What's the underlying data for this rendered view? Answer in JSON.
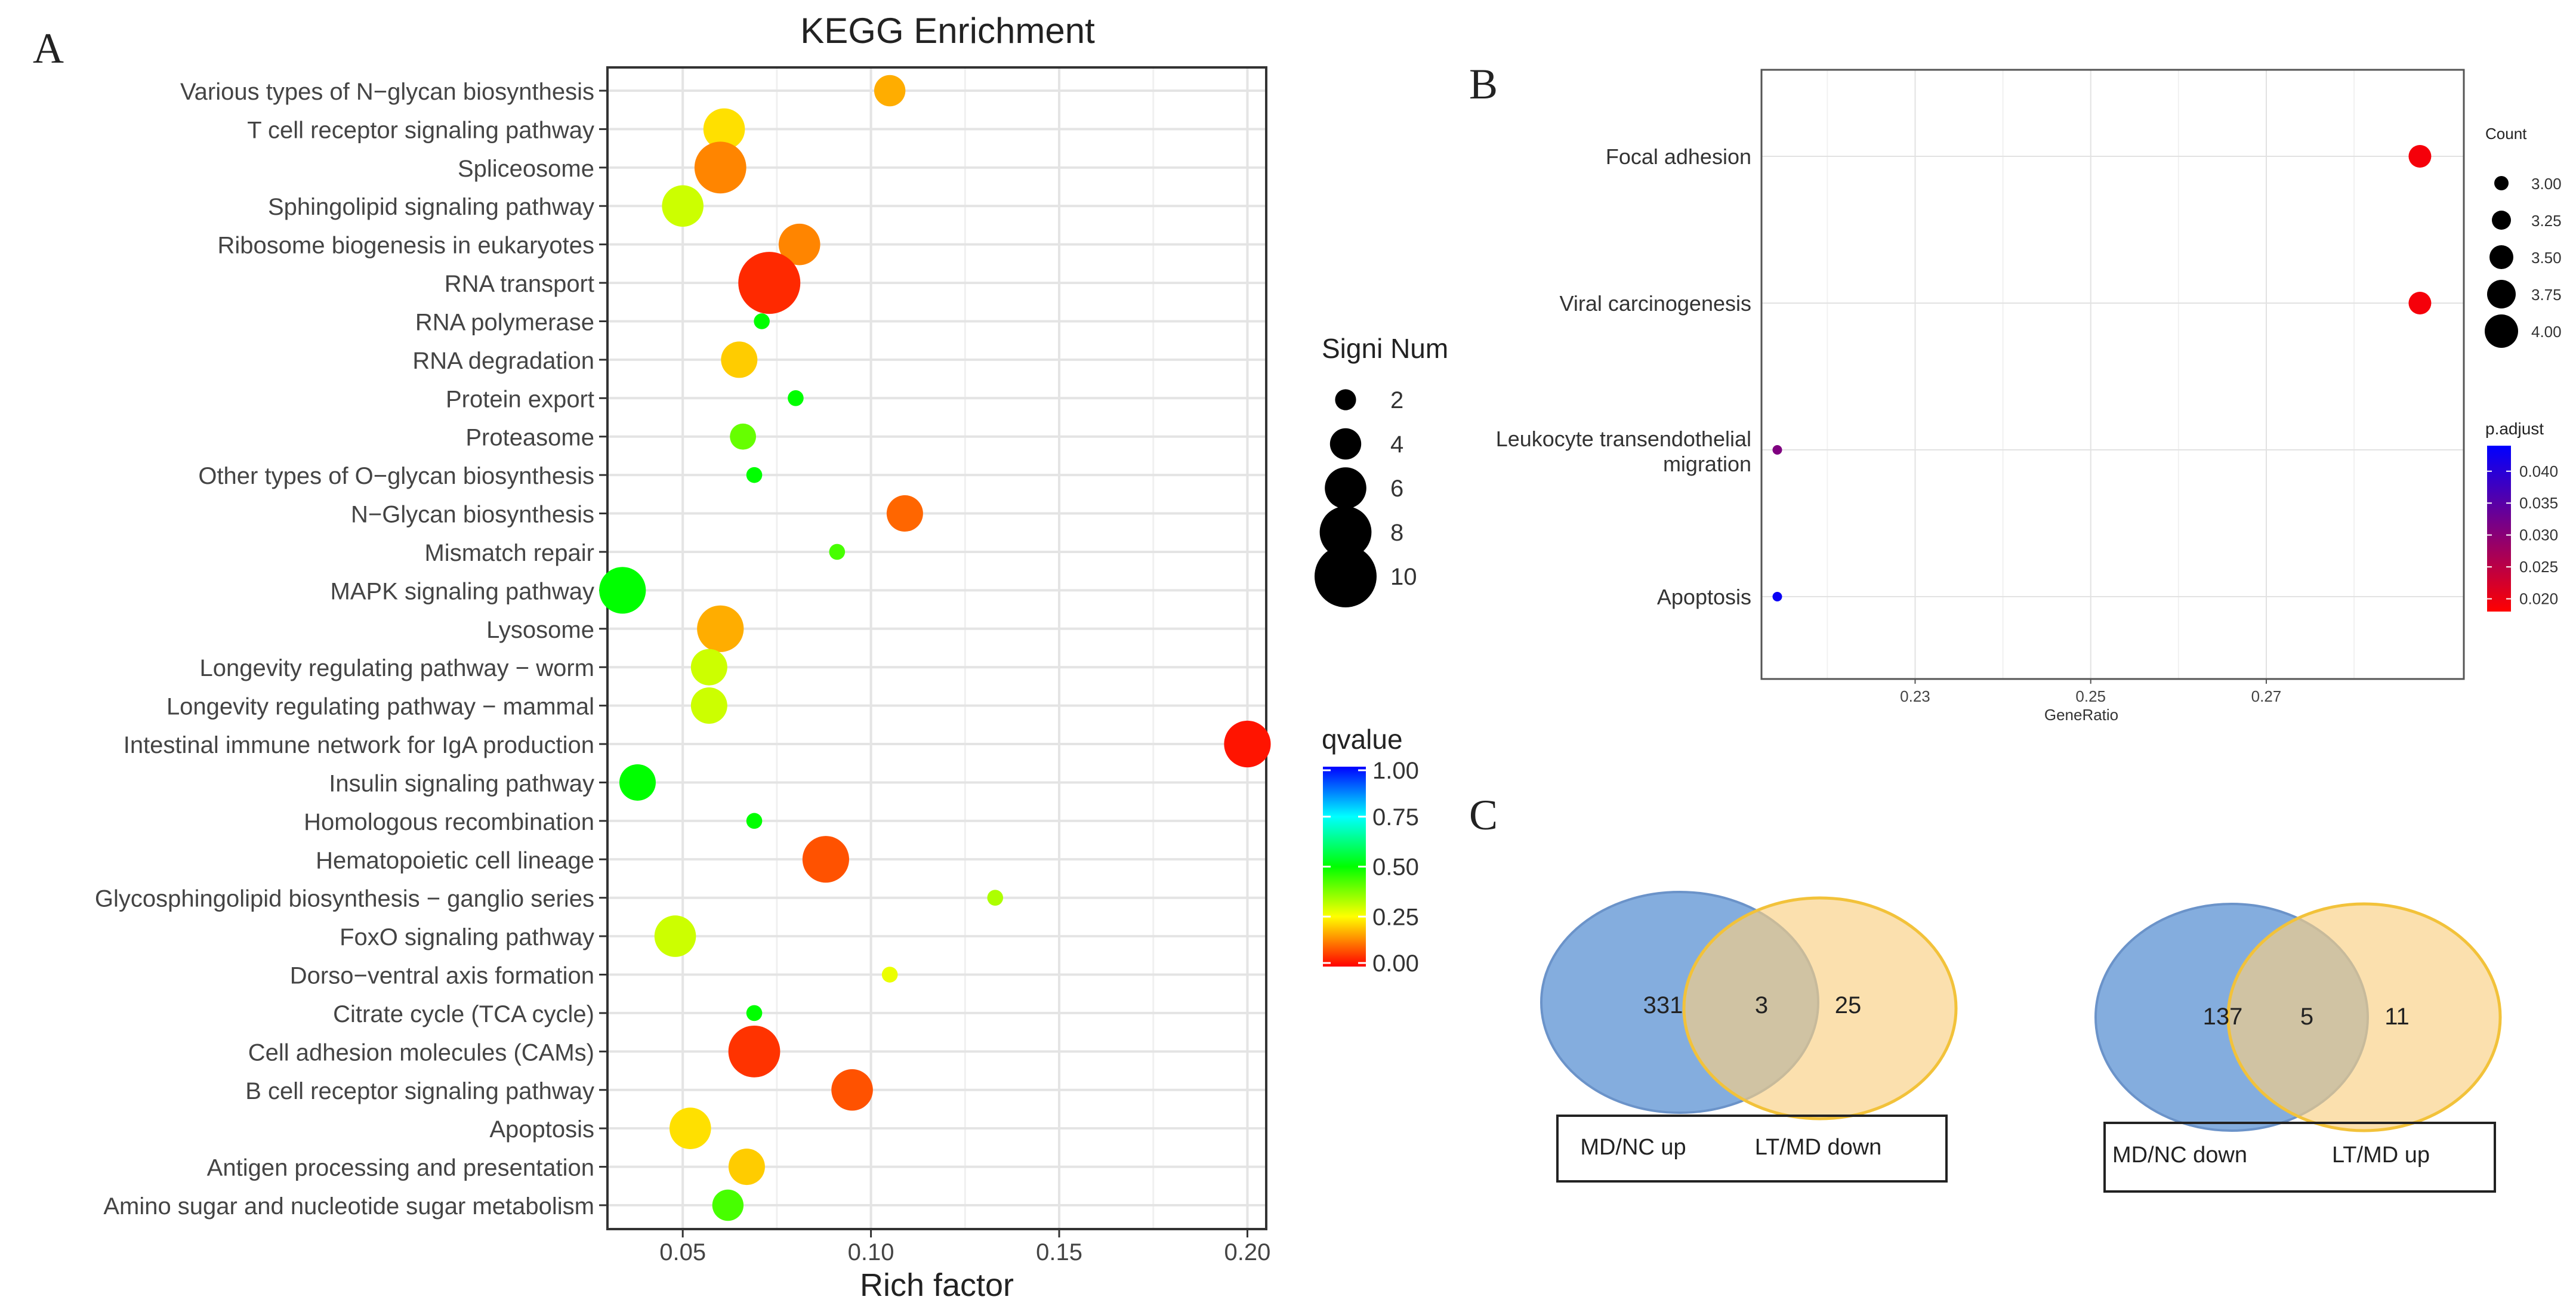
{
  "colors": {
    "panel_a_q0": "#ff0000",
    "panel_a_q025": "#ffff00",
    "panel_a_q05": "#00ff00",
    "panel_a_q075": "#00ffff",
    "panel_a_q1": "#0000ff",
    "panel_b_low": "#ff0000",
    "panel_b_high": "#0000ff",
    "venn_blue": "#6f9fd8",
    "venn_orange": "#f9cf82"
  },
  "panel_labels": {
    "a": "A",
    "b": "B",
    "c": "C"
  },
  "chart_data": [
    {
      "type": "scatter",
      "panel": "A",
      "title": "KEGG Enrichment",
      "xlabel": "Rich factor",
      "ylabel": "",
      "xlim": [
        0.03,
        0.205
      ],
      "xticks": [
        0.05,
        0.1,
        0.15,
        0.2
      ],
      "xtick_labels": [
        "0.05",
        "0.10",
        "0.15",
        "0.20"
      ],
      "grid": true,
      "size_legend": {
        "title": "Signi Num",
        "values": [
          2,
          4,
          6,
          8,
          10
        ],
        "labels": [
          "2",
          "4",
          "6",
          "8",
          "10"
        ]
      },
      "color_legend": {
        "title": "qvalue",
        "values": [
          1.0,
          0.75,
          0.5,
          0.25,
          0.0
        ],
        "labels": [
          "1.00",
          "0.75",
          "0.50",
          "0.25",
          "0.00"
        ]
      },
      "categories": [
        "Various types of N−glycan biosynthesis",
        "T cell receptor signaling pathway",
        "Spliceosome",
        "Sphingolipid signaling pathway",
        "Ribosome biogenesis in eukaryotes",
        "RNA transport",
        "RNA polymerase",
        "RNA degradation",
        "Protein export",
        "Proteasome",
        "Other types of O−glycan biosynthesis",
        "N−Glycan biosynthesis",
        "Mismatch repair",
        "MAPK signaling pathway",
        "Lysosome",
        "Longevity regulating pathway − worm",
        "Longevity regulating pathway − mammal",
        "Intestinal immune network for IgA production",
        "Insulin signaling pathway",
        "Homologous recombination",
        "Hematopoietic cell lineage",
        "Glycosphingolipid biosynthesis − ganglio series",
        "FoxO signaling pathway",
        "Dorso−ventral axis formation",
        "Citrate cycle (TCA cycle)",
        "Cell adhesion molecules (CAMs)",
        "B cell receptor signaling pathway",
        "Apoptosis",
        "Antigen processing and presentation",
        "Amino sugar and nucleotide sugar metabolism"
      ],
      "rich_factor": [
        0.105,
        0.061,
        0.06,
        0.05,
        0.081,
        0.073,
        0.071,
        0.065,
        0.08,
        0.066,
        0.069,
        0.109,
        0.091,
        0.034,
        0.06,
        0.057,
        0.057,
        0.2,
        0.038,
        0.069,
        0.088,
        0.133,
        0.048,
        0.105,
        0.069,
        0.069,
        0.095,
        0.052,
        0.067,
        0.062
      ],
      "signi_num": [
        4,
        6,
        8,
        6,
        6,
        10,
        1,
        5,
        1,
        3,
        1,
        5,
        1,
        7,
        7,
        5,
        5,
        7,
        5,
        1,
        7,
        1,
        6,
        1,
        1,
        8,
        6,
        6,
        5,
        4
      ],
      "qvalue": [
        0.17,
        0.22,
        0.13,
        0.3,
        0.13,
        0.04,
        0.5,
        0.2,
        0.5,
        0.4,
        0.5,
        0.1,
        0.43,
        0.5,
        0.17,
        0.3,
        0.3,
        0.02,
        0.5,
        0.5,
        0.08,
        0.33,
        0.3,
        0.27,
        0.5,
        0.05,
        0.08,
        0.22,
        0.2,
        0.43
      ]
    },
    {
      "type": "scatter",
      "panel": "B",
      "title": "",
      "xlabel": "GeneRatio",
      "ylabel": "",
      "xlim": [
        0.2125,
        0.2925
      ],
      "xticks": [
        0.23,
        0.25,
        0.27
      ],
      "xtick_labels": [
        "0.23",
        "0.25",
        "0.27"
      ],
      "grid": true,
      "size_legend": {
        "title": "Count",
        "values": [
          3.0,
          3.25,
          3.5,
          3.75,
          4.0
        ],
        "labels": [
          "3.00",
          "3.25",
          "3.50",
          "3.75",
          "4.00"
        ]
      },
      "color_legend": {
        "title": "p.adjust",
        "values": [
          0.04,
          0.035,
          0.03,
          0.025,
          0.02
        ],
        "labels": [
          "0.040",
          "0.035",
          "0.030",
          "0.025",
          "0.020"
        ],
        "range": [
          0.018,
          0.044
        ]
      },
      "categories": [
        "Focal adhesion",
        "Viral carcinogenesis",
        "Leukocyte transendothelial migration",
        "Apoptosis"
      ],
      "category_lines": [
        [
          "Focal adhesion"
        ],
        [
          "Viral carcinogenesis"
        ],
        [
          "Leukocyte transendothelial",
          "migration"
        ],
        [
          "Apoptosis"
        ]
      ],
      "gene_ratio": [
        0.2875,
        0.2875,
        0.2143,
        0.2143
      ],
      "count": [
        4,
        4,
        3,
        3
      ],
      "p_adjust": [
        0.019,
        0.019,
        0.031,
        0.043
      ]
    },
    {
      "type": "venn",
      "panel": "C",
      "diagrams": [
        {
          "left_only": "331",
          "overlap": "3",
          "right_only": "25",
          "left_label": "MD/NC up",
          "right_label": "LT/MD down"
        },
        {
          "left_only": "137",
          "overlap": "5",
          "right_only": "11",
          "left_label": "MD/NC down",
          "right_label": "LT/MD up"
        }
      ]
    }
  ]
}
